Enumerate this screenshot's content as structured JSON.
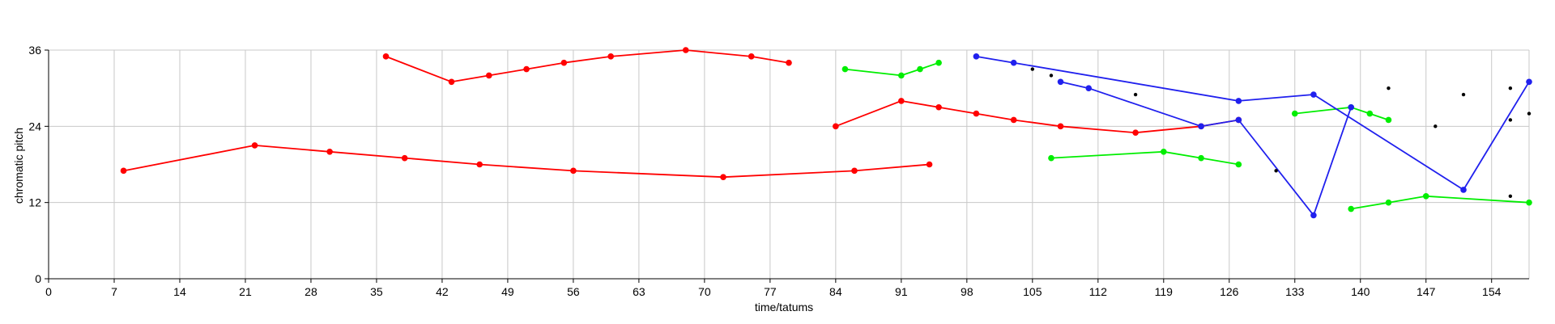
{
  "chart_data": {
    "type": "line",
    "title": "",
    "xlabel": "time/tatums",
    "ylabel": "chromatic pitch",
    "xlim": [
      0,
      158
    ],
    "ylim": [
      0,
      36
    ],
    "xticks": [
      0,
      7,
      14,
      21,
      28,
      35,
      42,
      49,
      56,
      63,
      70,
      77,
      84,
      91,
      98,
      105,
      112,
      119,
      126,
      133,
      140,
      147,
      154
    ],
    "yticks": [
      0,
      12,
      24,
      36
    ],
    "grid": true,
    "legend": "none",
    "colors": {
      "red": "#ff0000",
      "green": "#00ee00",
      "blue": "#2020ee",
      "black": "#000000",
      "grid": "#c8c8c8"
    },
    "series": [
      {
        "color": "red",
        "points": [
          [
            8,
            17
          ],
          [
            22,
            21
          ],
          [
            30,
            20
          ],
          [
            38,
            19
          ],
          [
            46,
            18
          ],
          [
            56,
            17
          ],
          [
            72,
            16
          ],
          [
            86,
            17
          ],
          [
            94,
            18
          ]
        ]
      },
      {
        "color": "red",
        "points": [
          [
            36,
            35
          ],
          [
            43,
            31
          ],
          [
            47,
            32
          ],
          [
            51,
            33
          ],
          [
            55,
            34
          ],
          [
            60,
            35
          ],
          [
            68,
            36
          ],
          [
            75,
            35
          ],
          [
            79,
            34
          ]
        ]
      },
      {
        "color": "red",
        "points": [
          [
            84,
            24
          ],
          [
            91,
            28
          ],
          [
            95,
            27
          ],
          [
            99,
            26
          ],
          [
            103,
            25
          ],
          [
            108,
            24
          ],
          [
            116,
            23
          ],
          [
            123,
            24
          ],
          [
            127,
            25
          ]
        ]
      },
      {
        "color": "green",
        "points": [
          [
            85,
            33
          ],
          [
            91,
            32
          ],
          [
            93,
            33
          ],
          [
            95,
            34
          ]
        ]
      },
      {
        "color": "green",
        "points": [
          [
            107,
            19
          ],
          [
            119,
            20
          ],
          [
            123,
            19
          ],
          [
            127,
            18
          ]
        ]
      },
      {
        "color": "green",
        "points": [
          [
            133,
            26
          ],
          [
            139,
            27
          ],
          [
            141,
            26
          ],
          [
            143,
            25
          ]
        ]
      },
      {
        "color": "green",
        "points": [
          [
            139,
            11
          ],
          [
            143,
            12
          ],
          [
            147,
            13
          ],
          [
            158,
            12
          ]
        ]
      },
      {
        "color": "blue",
        "points": [
          [
            99,
            35
          ],
          [
            103,
            34
          ],
          [
            127,
            28
          ],
          [
            135,
            29
          ],
          [
            151,
            14
          ],
          [
            158,
            31
          ]
        ]
      },
      {
        "color": "blue",
        "points": [
          [
            108,
            31
          ],
          [
            111,
            30
          ],
          [
            123,
            24
          ],
          [
            127,
            25
          ],
          [
            135,
            10
          ],
          [
            139,
            27
          ]
        ]
      }
    ],
    "black_points": [
      [
        105,
        33
      ],
      [
        107,
        32
      ],
      [
        116,
        29
      ],
      [
        131,
        17
      ],
      [
        148,
        24
      ],
      [
        151,
        29
      ],
      [
        156,
        25
      ],
      [
        158,
        26
      ],
      [
        156,
        13
      ],
      [
        156,
        30
      ],
      [
        143,
        30
      ]
    ]
  }
}
